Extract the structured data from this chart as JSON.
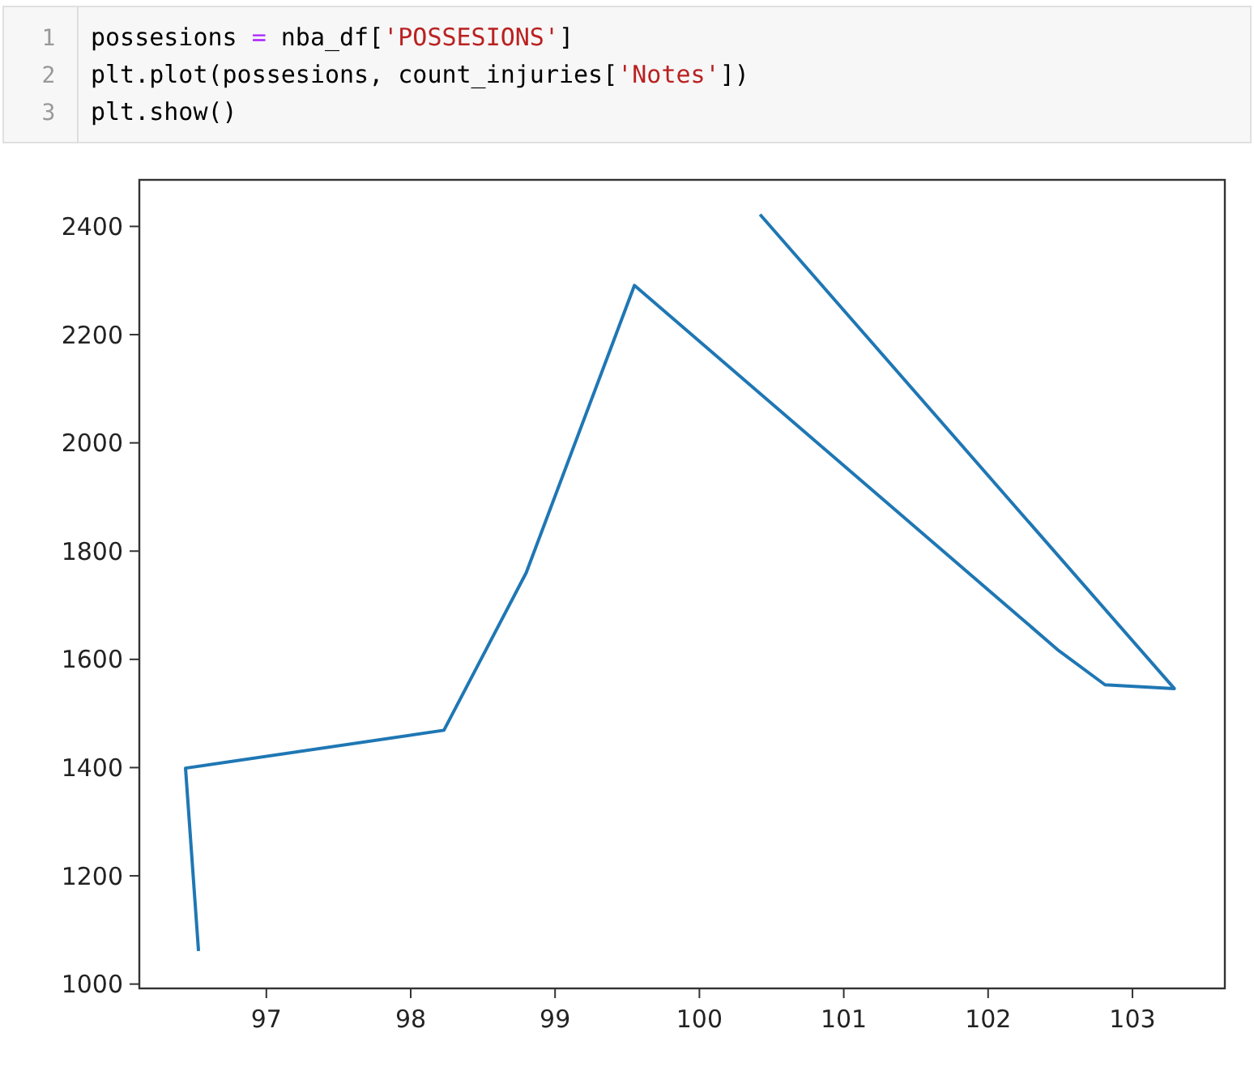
{
  "chart_data": {
    "type": "line",
    "annotations": [
      "1",
      "possesions = nba_df['POSSESIONS']",
      "2",
      "plt.plot(possesions, count_injuries['Notes'])",
      "3",
      "plt.show()"
    ],
    "x": [
      96.53,
      96.44,
      98.23,
      98.8,
      99.55,
      102.49,
      102.81,
      103.29,
      100.42
    ],
    "series": [
      {
        "color": "#1f77b4",
        "values": [
          1061,
          1399,
          1469,
          1760,
          2291,
          1616,
          1553,
          1546,
          2422
        ]
      }
    ],
    "xlim": [
      96.12,
      103.64
    ],
    "ylim": [
      992,
      2486
    ],
    "xticks": [
      97,
      98,
      99,
      100,
      101,
      102,
      103
    ],
    "yticks": [
      1000,
      1200,
      1400,
      1600,
      1800,
      2000,
      2200,
      2400
    ]
  }
}
